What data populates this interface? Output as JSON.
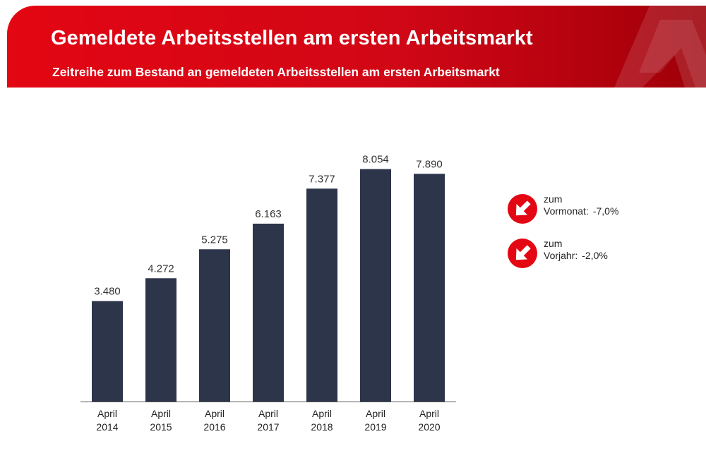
{
  "header": {
    "title": "Gemeldete Arbeitsstellen am ersten Arbeitsmarkt",
    "subtitle": "Zeitreihe zum Bestand an gemeldeten Arbeitsstellen am ersten Arbeitsmarkt"
  },
  "colors": {
    "brand_red": "#e30613",
    "bar": "#2d354b",
    "arrow_circle": "#e30613"
  },
  "chart_data": {
    "type": "bar",
    "title": "",
    "xlabel": "",
    "ylabel": "",
    "categories": [
      [
        "April",
        "2014"
      ],
      [
        "April",
        "2015"
      ],
      [
        "April",
        "2016"
      ],
      [
        "April",
        "2017"
      ],
      [
        "April",
        "2018"
      ],
      [
        "April",
        "2019"
      ],
      [
        "April",
        "2020"
      ]
    ],
    "values": [
      3480,
      4272,
      5275,
      6163,
      7377,
      8054,
      7890
    ],
    "value_labels": [
      "3.480",
      "4.272",
      "5.275",
      "6.163",
      "7.377",
      "8.054",
      "7.890"
    ],
    "ylim": [
      0,
      10000
    ],
    "grid": false,
    "y_axis_visible": false
  },
  "changes": [
    {
      "prefix": "zum",
      "label": "Vormonat:",
      "value": "-7,0%",
      "direction": "down",
      "icon": "down-right-arrow-icon"
    },
    {
      "prefix": "zum",
      "label": "Vorjahr:",
      "value": "-2,0%",
      "direction": "down",
      "icon": "down-right-arrow-icon"
    }
  ]
}
